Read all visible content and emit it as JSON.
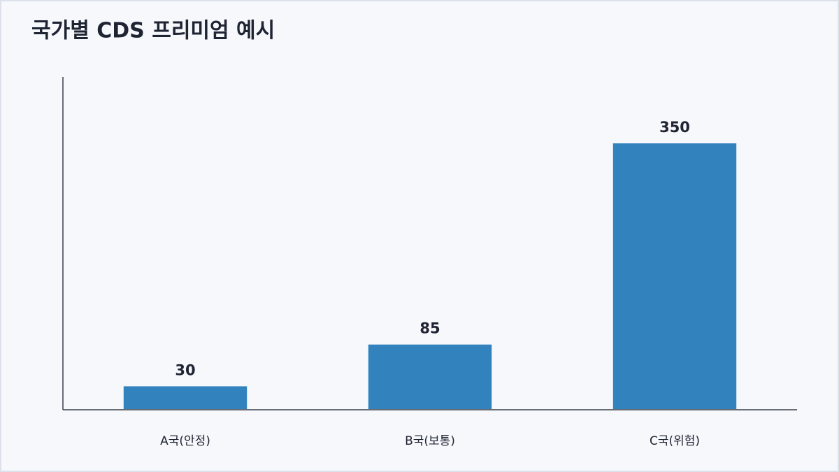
{
  "chart_data": {
    "type": "bar",
    "title": "국가별 CDS 프리미엄 예시",
    "categories": [
      "A국(안정)",
      "B국(보통)",
      "C국(위험)"
    ],
    "values": [
      30,
      85,
      350
    ],
    "color": "#3182bd",
    "ylim": [
      0,
      437.5
    ]
  }
}
